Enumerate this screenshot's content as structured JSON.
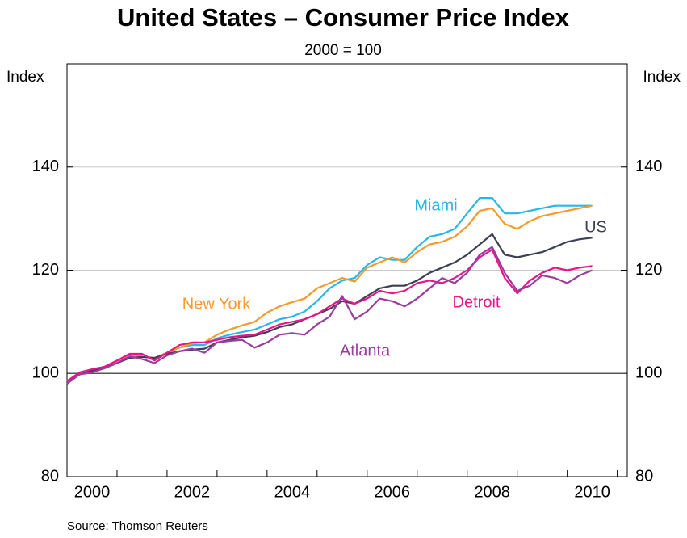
{
  "chart_data": {
    "type": "line",
    "title": "United States – Consumer Price Index",
    "subtitle": "2000 = 100",
    "ylabel": "Index",
    "y2label": "Index",
    "source": "Source: Thomson Reuters",
    "x": [
      2000,
      2000.25,
      2000.5,
      2000.75,
      2001,
      2001.25,
      2001.5,
      2001.75,
      2002,
      2002.25,
      2002.5,
      2002.75,
      2003,
      2003.25,
      2003.5,
      2003.75,
      2004,
      2004.25,
      2004.5,
      2004.75,
      2005,
      2005.25,
      2005.5,
      2005.75,
      2006,
      2006.25,
      2006.5,
      2006.75,
      2007,
      2007.25,
      2007.5,
      2007.75,
      2008,
      2008.25,
      2008.5,
      2008.75,
      2009,
      2009.25,
      2009.5,
      2009.75,
      2010,
      2010.25,
      2010.5
    ],
    "xlim": [
      2000,
      2011.2
    ],
    "xticks": [
      {
        "value": 2000.5,
        "label": "2000"
      },
      {
        "value": 2002.5,
        "label": "2002"
      },
      {
        "value": 2004.5,
        "label": "2004"
      },
      {
        "value": 2006.5,
        "label": "2006"
      },
      {
        "value": 2008.5,
        "label": "2008"
      },
      {
        "value": 2010.5,
        "label": "2010"
      }
    ],
    "x_minor_ticks": [
      2001,
      2002,
      2003,
      2004,
      2005,
      2006,
      2007,
      2008,
      2009,
      2010,
      2011
    ],
    "ylim": [
      80,
      160
    ],
    "yticks": [
      80,
      100,
      120,
      140
    ],
    "y2lim": [
      80,
      160
    ],
    "y2ticks": [
      80,
      100,
      120,
      140
    ],
    "baseline": 100,
    "grid": true,
    "series": [
      {
        "name": "Miami",
        "color": "#29b6e8",
        "values": [
          98.5,
          100,
          100.5,
          101,
          102,
          103.5,
          103.2,
          103,
          104,
          105,
          105.5,
          105.5,
          106.8,
          107.5,
          108,
          108.5,
          109.5,
          110.5,
          111,
          112,
          114,
          116.5,
          118,
          118.5,
          121,
          122.5,
          122,
          122,
          124.5,
          126.5,
          127,
          128,
          131,
          134,
          134,
          131,
          131,
          131.5,
          132,
          132.5,
          132.5,
          132.5,
          132.5
        ]
      },
      {
        "name": "New York",
        "color": "#f59a2c",
        "values": [
          98.5,
          100,
          100.5,
          101.3,
          102.3,
          103.5,
          103.3,
          103,
          104,
          105,
          105.8,
          106,
          107.5,
          108.5,
          109.3,
          110,
          111.8,
          113,
          113.8,
          114.5,
          116.5,
          117.5,
          118.5,
          117.8,
          120.5,
          121.5,
          122.5,
          121.5,
          123.5,
          125,
          125.5,
          126.5,
          128.5,
          131.5,
          132,
          129,
          128,
          129.5,
          130.5,
          131,
          131.5,
          132,
          132.5
        ]
      },
      {
        "name": "US",
        "color": "#3d3f55",
        "values": [
          98.5,
          99.8,
          100.5,
          101.2,
          102,
          103,
          103.2,
          103,
          103.8,
          104.3,
          104.6,
          104.8,
          106,
          106.5,
          107,
          107.3,
          108,
          109,
          109.5,
          110.5,
          111.5,
          112.5,
          114,
          113.5,
          115,
          116.5,
          117,
          117,
          118,
          119.5,
          120.5,
          121.5,
          123,
          125,
          127,
          123,
          122.5,
          123,
          123.5,
          124.5,
          125.5,
          126,
          126.3
        ]
      },
      {
        "name": "Detroit",
        "color": "#e8168a",
        "values": [
          98.5,
          100.2,
          100.8,
          101.3,
          102.5,
          103.8,
          103.8,
          102.5,
          104,
          105.5,
          106,
          106,
          106.5,
          107,
          107.3,
          107.5,
          108.5,
          109.5,
          110,
          110.5,
          111.5,
          113,
          114.5,
          113.5,
          114.5,
          116,
          115.5,
          116,
          117.5,
          118,
          117.5,
          118.5,
          120,
          122.5,
          124,
          118.5,
          115.5,
          118,
          119.5,
          120.5,
          120,
          120.5,
          120.8
        ]
      },
      {
        "name": "Atlanta",
        "color": "#9b3c9e",
        "values": [
          98,
          99.8,
          100.2,
          101,
          102,
          103.3,
          102.8,
          102,
          103.5,
          104.3,
          104.8,
          104,
          106,
          106.3,
          106.5,
          105,
          106,
          107.5,
          107.8,
          107.5,
          109.5,
          111,
          115,
          110.5,
          112,
          114.5,
          114,
          113,
          114.5,
          116.5,
          118.5,
          117.5,
          119.5,
          123,
          124.5,
          119.5,
          116,
          117,
          119,
          118.5,
          117.5,
          119,
          120
        ]
      }
    ]
  }
}
